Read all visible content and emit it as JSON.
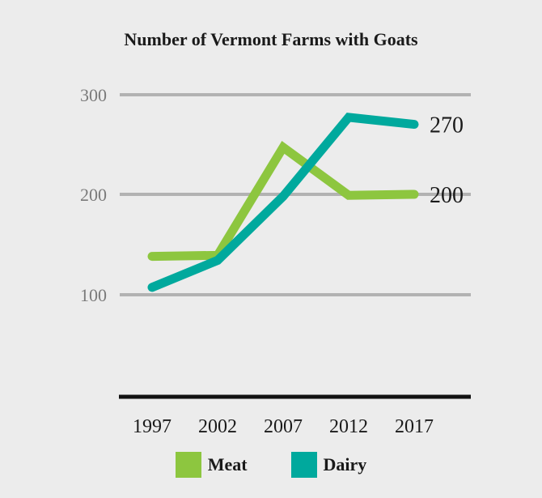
{
  "chart_data": {
    "type": "line",
    "title": "Number of Vermont Farms with Goats",
    "xlabel": "",
    "ylabel": "",
    "categories": [
      "1997",
      "2002",
      "2007",
      "2012",
      "2017"
    ],
    "y_ticks": [
      "100",
      "200",
      "300"
    ],
    "ylim": [
      0,
      300
    ],
    "grid": true,
    "legend_position": "bottom",
    "series": [
      {
        "name": "Meat",
        "color": "#8dc63f",
        "values": [
          138,
          139,
          247,
          199,
          200
        ],
        "end_label": "200"
      },
      {
        "name": "Dairy",
        "color": "#00a99d",
        "values": [
          107,
          134,
          198,
          277,
          270
        ],
        "end_label": "270"
      }
    ]
  }
}
